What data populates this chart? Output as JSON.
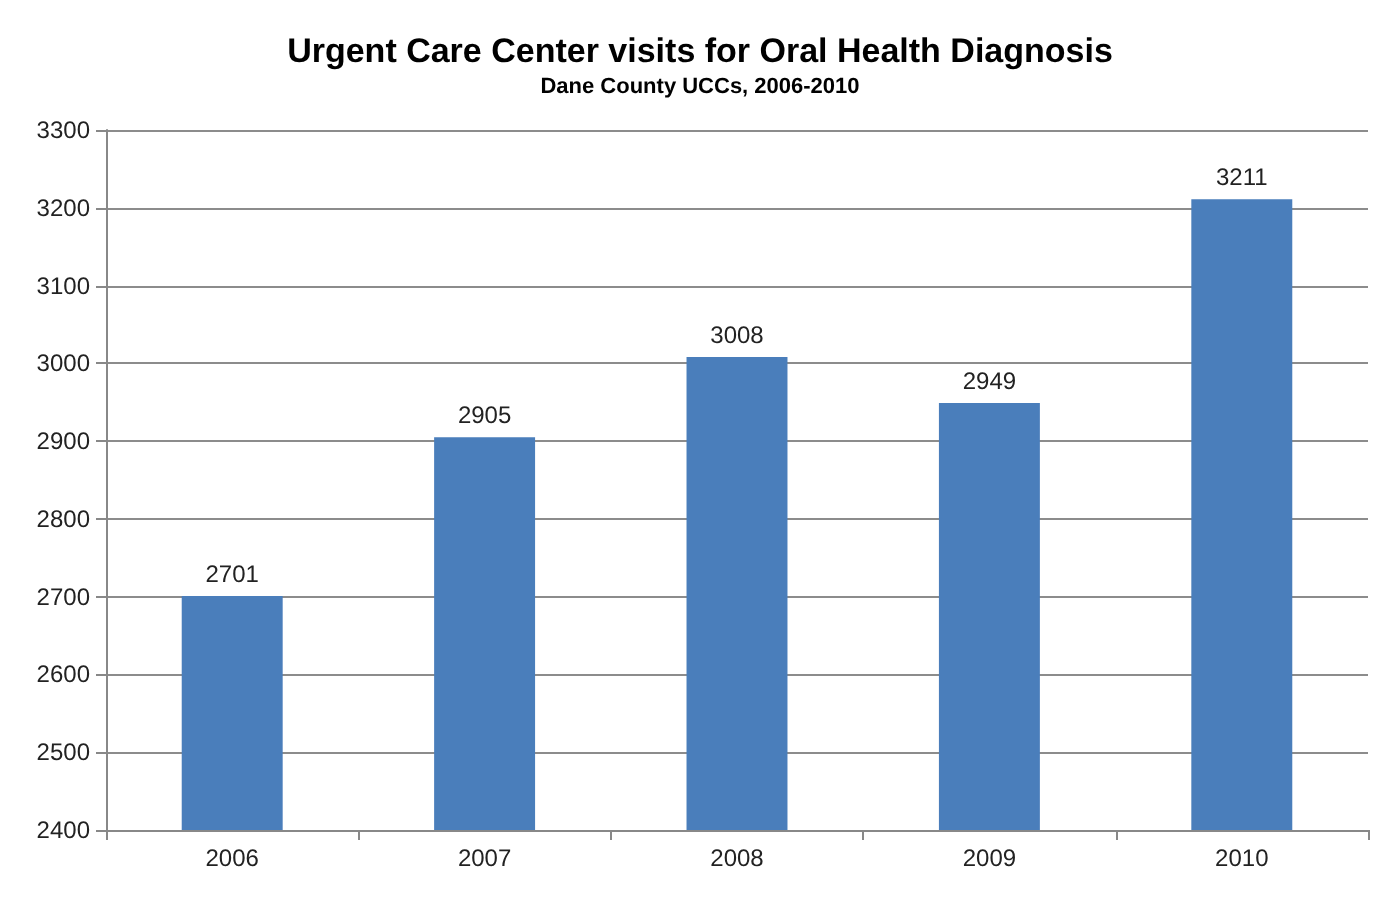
{
  "chart_data": {
    "type": "bar",
    "title": "Urgent Care Center visits for Oral Health Diagnosis",
    "subtitle": "Dane County UCCs, 2006-2010",
    "categories": [
      "2006",
      "2007",
      "2008",
      "2009",
      "2010"
    ],
    "values": [
      2701,
      2905,
      3008,
      2949,
      3211
    ],
    "color": "#4a7ebb",
    "ylim": [
      2400,
      3300
    ],
    "yticks": [
      2400,
      2500,
      2600,
      2700,
      2800,
      2900,
      3000,
      3100,
      3200,
      3300
    ],
    "grid": "y",
    "data_labels": true
  }
}
